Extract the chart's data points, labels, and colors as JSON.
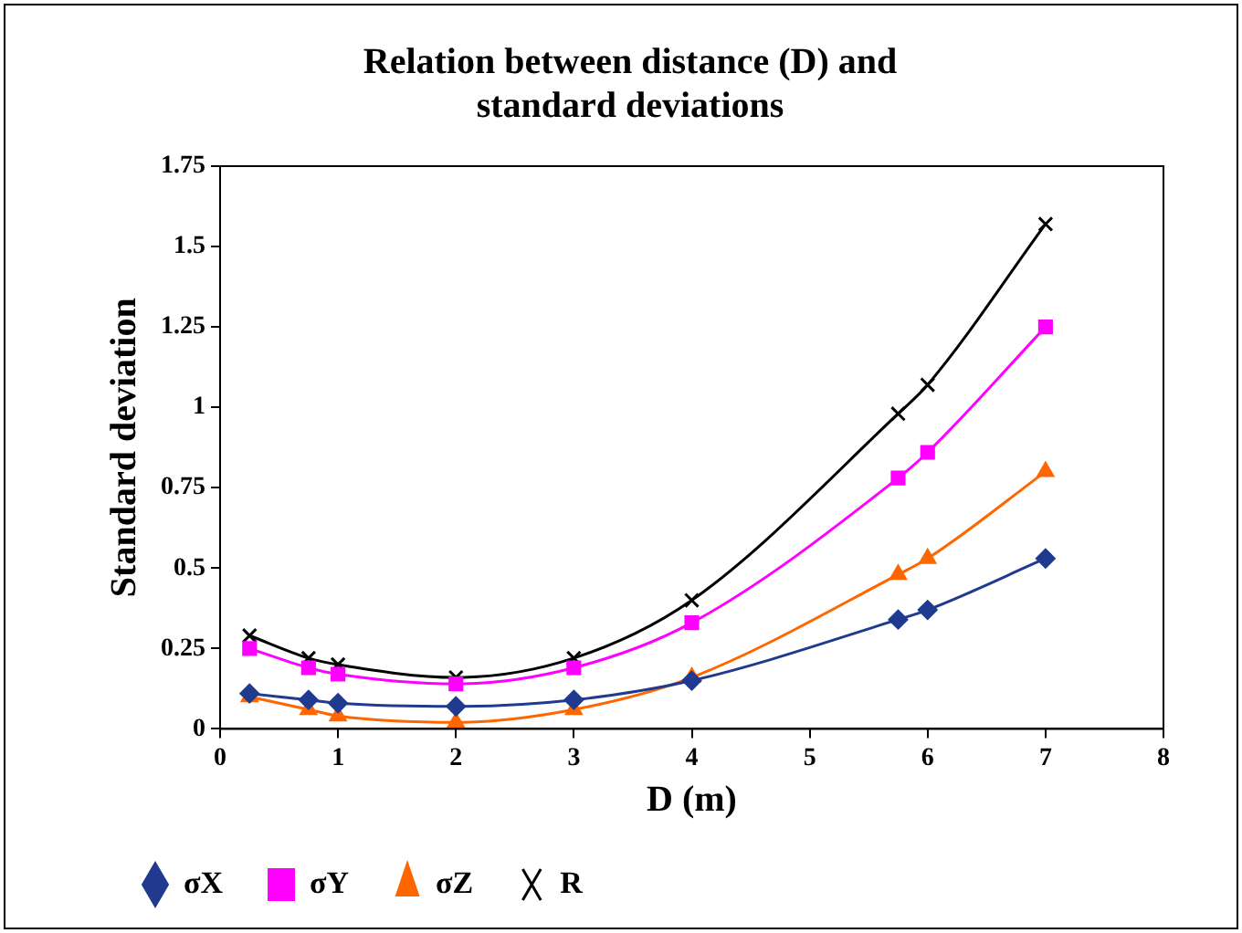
{
  "chart_data": {
    "type": "line",
    "title": "Relation between distance (D) and standard deviations",
    "xlabel": "D (m)",
    "ylabel": "Standard deviation",
    "x": [
      0.25,
      0.75,
      1,
      2,
      3,
      4,
      5.75,
      6,
      7
    ],
    "xlim": [
      0,
      8
    ],
    "xticks": [
      0,
      1,
      2,
      3,
      4,
      5,
      6,
      7,
      8
    ],
    "ylim": [
      0,
      1.75
    ],
    "yticks": [
      0,
      0.25,
      0.5,
      0.75,
      1,
      1.25,
      1.5,
      1.75
    ],
    "grid": false,
    "legend": "bottom",
    "line_style": "solid",
    "series": [
      {
        "name": "σX",
        "color": "#1f3a8f",
        "marker": "diamond",
        "values": [
          0.11,
          0.09,
          0.08,
          0.07,
          0.09,
          0.15,
          0.34,
          0.37,
          0.53
        ]
      },
      {
        "name": "σY",
        "color": "#ff00ff",
        "marker": "square",
        "values": [
          0.25,
          0.19,
          0.17,
          0.14,
          0.19,
          0.33,
          0.78,
          0.86,
          1.25
        ]
      },
      {
        "name": "σZ",
        "color": "#ff6600",
        "marker": "triangle",
        "values": [
          0.1,
          0.06,
          0.04,
          0.02,
          0.06,
          0.16,
          0.48,
          0.53,
          0.8
        ]
      },
      {
        "name": "R",
        "color": "#000000",
        "marker": "cross",
        "values": [
          0.29,
          0.22,
          0.2,
          0.16,
          0.22,
          0.4,
          0.98,
          1.07,
          1.57
        ]
      }
    ]
  }
}
